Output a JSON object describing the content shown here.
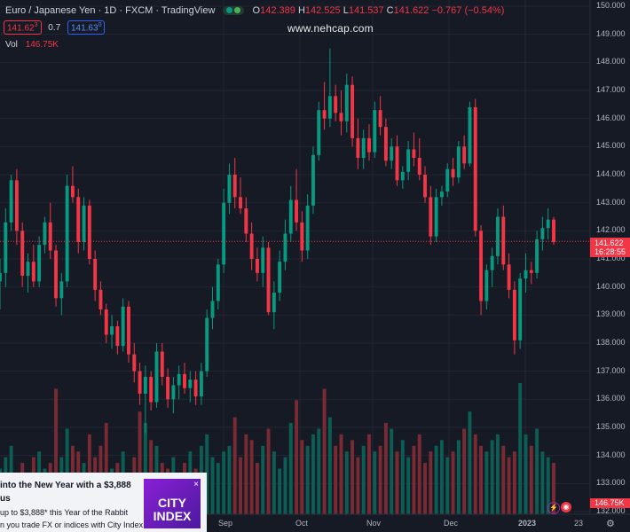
{
  "legend": {
    "title": "Euro / Japanese Yen · 1D · FXCM · TradingView",
    "o_key": "O",
    "o_val": "142.389",
    "h_key": "H",
    "h_val": "142.525",
    "l_key": "L",
    "l_val": "141.537",
    "c_key": "C",
    "c_val": "141.622",
    "change": "−0.767 (−0.54%)",
    "sell_price": "141.62",
    "sell_sup": "3",
    "spread": "0.7",
    "buy_price": "141.63",
    "buy_sup": "0",
    "vol_label": "Vol",
    "vol_value": "146.75K"
  },
  "watermark": "www.nehcap.com",
  "price_axis": {
    "labels": [
      "150.000",
      "149.000",
      "148.000",
      "147.000",
      "146.000",
      "145.000",
      "144.000",
      "143.000",
      "142.000",
      "141.000",
      "140.000",
      "139.000",
      "138.000",
      "137.000",
      "136.000",
      "135.000",
      "134.000",
      "133.000",
      "132.000"
    ],
    "last_price": "141.622",
    "countdown": "16:28:55",
    "volume_badge": "146.75K"
  },
  "time_axis": {
    "labels": [
      "Sep",
      "Oct",
      "Nov",
      "Dec",
      "2023",
      "23"
    ]
  },
  "ad": {
    "headline": " into the New Year with a $3,888",
    "headline2": "us",
    "body1": " up to $3,888* this Year of the Rabbit",
    "body2": "n you trade FX or indices with City Index.",
    "logo_line1": "CITY",
    "logo_line2": "INDEX",
    "close": "×"
  },
  "colors": {
    "background": "#161a25",
    "up": "#089981",
    "down": "#f23645",
    "grid": "#232632"
  },
  "icons": {
    "flash": "lightning-icon",
    "target": "target-icon",
    "settings": "gear-icon"
  },
  "chart_data": {
    "type": "candlestick",
    "title": "Euro / Japanese Yen · 1D · FXCM · TradingView",
    "ylim": [
      132,
      150
    ],
    "grid": true,
    "x_labels": [
      "Sep",
      "Oct",
      "Nov",
      "Dec",
      "2023",
      "23"
    ],
    "ohlc": [
      [
        140.2,
        141.0,
        139.2,
        140.5
      ],
      [
        140.5,
        142.8,
        140.0,
        142.3
      ],
      [
        142.3,
        144.0,
        142.0,
        143.8
      ],
      [
        143.8,
        144.2,
        141.5,
        142.0
      ],
      [
        142.0,
        142.3,
        140.0,
        140.4
      ],
      [
        140.4,
        141.2,
        139.8,
        140.9
      ],
      [
        140.9,
        141.5,
        140.0,
        140.2
      ],
      [
        140.2,
        141.8,
        140.0,
        141.5
      ],
      [
        141.5,
        142.5,
        141.2,
        142.3
      ],
      [
        142.3,
        143.0,
        141.0,
        141.3
      ],
      [
        141.3,
        141.5,
        139.3,
        139.6
      ],
      [
        139.6,
        140.5,
        139.0,
        140.2
      ],
      [
        140.2,
        144.0,
        140.0,
        143.6
      ],
      [
        143.6,
        144.3,
        143.0,
        143.2
      ],
      [
        143.2,
        143.5,
        141.2,
        141.6
      ],
      [
        141.6,
        143.2,
        141.3,
        142.9
      ],
      [
        142.9,
        143.1,
        140.8,
        141.0
      ],
      [
        141.0,
        141.3,
        139.5,
        139.9
      ],
      [
        139.9,
        140.2,
        139.0,
        139.2
      ],
      [
        139.2,
        139.4,
        138.0,
        138.3
      ],
      [
        138.3,
        139.0,
        137.8,
        138.6
      ],
      [
        138.6,
        138.8,
        137.6,
        137.9
      ],
      [
        137.9,
        139.6,
        137.7,
        139.3
      ],
      [
        139.3,
        139.5,
        137.3,
        137.6
      ],
      [
        137.6,
        138.0,
        136.6,
        137.0
      ],
      [
        137.0,
        137.3,
        135.8,
        136.2
      ],
      [
        136.2,
        137.2,
        134.8,
        136.8
      ],
      [
        136.8,
        137.0,
        135.6,
        135.9
      ],
      [
        135.9,
        138.0,
        135.7,
        137.7
      ],
      [
        137.7,
        138.0,
        136.5,
        136.8
      ],
      [
        136.8,
        137.1,
        135.7,
        136.0
      ],
      [
        136.0,
        136.8,
        135.5,
        136.5
      ],
      [
        136.5,
        137.2,
        136.0,
        136.9
      ],
      [
        136.9,
        137.3,
        136.2,
        136.4
      ],
      [
        136.4,
        137.0,
        135.9,
        136.7
      ],
      [
        136.7,
        137.0,
        135.8,
        136.1
      ],
      [
        136.1,
        137.3,
        135.8,
        137.0
      ],
      [
        137.0,
        139.2,
        136.8,
        138.9
      ],
      [
        138.9,
        140.0,
        138.5,
        139.5
      ],
      [
        139.5,
        141.0,
        139.2,
        140.8
      ],
      [
        140.8,
        143.5,
        140.5,
        143.0
      ],
      [
        143.0,
        144.4,
        142.6,
        144.0
      ],
      [
        144.0,
        144.6,
        142.8,
        143.2
      ],
      [
        143.2,
        143.9,
        142.6,
        142.8
      ],
      [
        142.8,
        143.2,
        141.6,
        141.9
      ],
      [
        141.9,
        142.3,
        140.6,
        141.0
      ],
      [
        141.0,
        141.4,
        140.2,
        140.5
      ],
      [
        140.5,
        141.8,
        140.0,
        141.4
      ],
      [
        141.4,
        141.6,
        139.0,
        139.1
      ],
      [
        139.1,
        140.2,
        138.5,
        139.8
      ],
      [
        139.8,
        141.3,
        139.5,
        140.9
      ],
      [
        140.9,
        142.4,
        140.6,
        141.9
      ],
      [
        141.9,
        143.6,
        141.6,
        143.1
      ],
      [
        143.1,
        144.2,
        142.0,
        142.3
      ],
      [
        142.3,
        142.7,
        140.9,
        141.3
      ],
      [
        141.3,
        143.3,
        141.0,
        142.9
      ],
      [
        142.9,
        145.0,
        142.6,
        144.7
      ],
      [
        144.7,
        146.6,
        144.5,
        146.3
      ],
      [
        146.3,
        147.3,
        145.6,
        146.0
      ],
      [
        146.0,
        148.5,
        145.7,
        146.8
      ],
      [
        146.8,
        147.2,
        145.9,
        146.2
      ],
      [
        146.2,
        147.0,
        145.4,
        145.9
      ],
      [
        145.9,
        147.6,
        145.5,
        147.2
      ],
      [
        147.2,
        147.5,
        145.0,
        145.3
      ],
      [
        145.3,
        146.0,
        144.2,
        144.6
      ],
      [
        144.6,
        145.6,
        144.2,
        145.3
      ],
      [
        145.3,
        145.8,
        144.5,
        144.8
      ],
      [
        144.8,
        146.6,
        144.6,
        146.3
      ],
      [
        146.3,
        146.8,
        145.4,
        145.7
      ],
      [
        145.7,
        146.0,
        144.3,
        144.5
      ],
      [
        144.5,
        145.3,
        144.2,
        145.0
      ],
      [
        145.0,
        145.4,
        143.6,
        143.8
      ],
      [
        143.8,
        144.3,
        143.5,
        144.1
      ],
      [
        144.1,
        145.2,
        143.8,
        144.9
      ],
      [
        144.9,
        145.5,
        144.3,
        144.6
      ],
      [
        144.6,
        145.3,
        143.8,
        144.0
      ],
      [
        144.0,
        144.3,
        143.0,
        143.2
      ],
      [
        143.2,
        143.6,
        141.5,
        141.8
      ],
      [
        141.8,
        143.5,
        141.6,
        143.2
      ],
      [
        143.2,
        143.6,
        142.9,
        143.4
      ],
      [
        143.4,
        144.4,
        143.2,
        144.2
      ],
      [
        144.2,
        144.6,
        143.6,
        143.9
      ],
      [
        143.9,
        145.2,
        143.7,
        145.0
      ],
      [
        145.0,
        145.4,
        144.2,
        144.4
      ],
      [
        144.4,
        146.6,
        144.3,
        146.4
      ],
      [
        146.4,
        146.7,
        141.8,
        142.0
      ],
      [
        142.0,
        142.2,
        139.0,
        139.5
      ],
      [
        139.5,
        140.8,
        139.2,
        140.6
      ],
      [
        140.6,
        141.4,
        140.0,
        141.1
      ],
      [
        141.1,
        142.8,
        140.8,
        142.5
      ],
      [
        142.5,
        142.9,
        140.6,
        140.8
      ],
      [
        140.8,
        141.2,
        139.6,
        139.9
      ],
      [
        139.9,
        140.2,
        137.6,
        138.1
      ],
      [
        138.1,
        140.5,
        137.8,
        140.3
      ],
      [
        140.3,
        141.2,
        139.8,
        140.6
      ],
      [
        140.6,
        140.9,
        140.1,
        140.5
      ],
      [
        140.5,
        142.0,
        140.3,
        141.7
      ],
      [
        141.7,
        142.5,
        141.3,
        142.1
      ],
      [
        142.1,
        142.8,
        141.7,
        142.4
      ],
      [
        142.4,
        142.5,
        141.5,
        141.6
      ]
    ],
    "volume": [
      8,
      10,
      12,
      7,
      9,
      6,
      10,
      11,
      8,
      9,
      22,
      10,
      15,
      12,
      11,
      9,
      14,
      10,
      12,
      16,
      8,
      9,
      11,
      7,
      10,
      18,
      16,
      13,
      12,
      9,
      8,
      10,
      7,
      9,
      11,
      8,
      12,
      14,
      10,
      9,
      11,
      12,
      17,
      10,
      14,
      13,
      9,
      12,
      15,
      11,
      8,
      10,
      16,
      20,
      13,
      12,
      14,
      15,
      22,
      17,
      12,
      14,
      11,
      13,
      10,
      12,
      14,
      11,
      12,
      16,
      15,
      11,
      13,
      10,
      12,
      14,
      9,
      11,
      12,
      13,
      10,
      11,
      13,
      15,
      18,
      14,
      12,
      11,
      13,
      14,
      12,
      10,
      11,
      23,
      14,
      12,
      15,
      11,
      10,
      9
    ]
  }
}
